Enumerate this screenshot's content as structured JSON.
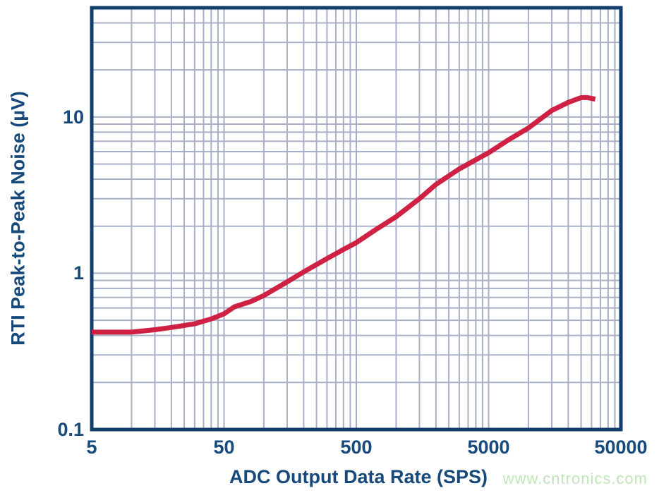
{
  "chart_data": {
    "type": "line",
    "title": "",
    "xlabel": "ADC Output Data Rate (SPS)",
    "ylabel": "RTI Peak-to-Peak Noise (µV)",
    "x_scale": "log",
    "y_scale": "log",
    "xlim": [
      5,
      50000
    ],
    "ylim": [
      0.1,
      50
    ],
    "x_ticks": [
      {
        "value": 5,
        "label": "5"
      },
      {
        "value": 50,
        "label": "50"
      },
      {
        "value": 500,
        "label": "500"
      },
      {
        "value": 5000,
        "label": "5000"
      },
      {
        "value": 50000,
        "label": "50000"
      }
    ],
    "y_ticks": [
      {
        "value": 0.1,
        "label": "0.1"
      },
      {
        "value": 1,
        "label": "1"
      },
      {
        "value": 10,
        "label": "10"
      }
    ],
    "grid": {
      "on": true,
      "subdivision_multipliers": [
        2,
        3,
        4,
        5,
        6,
        7,
        8,
        9,
        10
      ],
      "color": "#a9afc7"
    },
    "legend_position": "none",
    "series": [
      {
        "name": "RTI peak-to-peak noise",
        "color": "#ce2143",
        "points": [
          [
            5,
            0.42
          ],
          [
            10,
            0.42
          ],
          [
            15,
            0.435
          ],
          [
            20,
            0.45
          ],
          [
            30,
            0.475
          ],
          [
            40,
            0.51
          ],
          [
            50,
            0.55
          ],
          [
            60,
            0.61
          ],
          [
            80,
            0.66
          ],
          [
            100,
            0.72
          ],
          [
            150,
            0.88
          ],
          [
            200,
            1.02
          ],
          [
            300,
            1.24
          ],
          [
            400,
            1.42
          ],
          [
            500,
            1.57
          ],
          [
            700,
            1.9
          ],
          [
            1000,
            2.3
          ],
          [
            1500,
            3.0
          ],
          [
            2000,
            3.7
          ],
          [
            3000,
            4.65
          ],
          [
            5000,
            5.9
          ],
          [
            7000,
            7.1
          ],
          [
            10000,
            8.5
          ],
          [
            15000,
            11.0
          ],
          [
            20000,
            12.4
          ],
          [
            25000,
            13.3
          ],
          [
            28000,
            13.3
          ],
          [
            32000,
            13.0
          ]
        ]
      }
    ],
    "colors": {
      "border": "#143f6d",
      "labels": "#17497b",
      "background": "#ffffff"
    }
  },
  "watermark": {
    "text": "www.cntronics.com",
    "color": "#c0e5ba"
  }
}
